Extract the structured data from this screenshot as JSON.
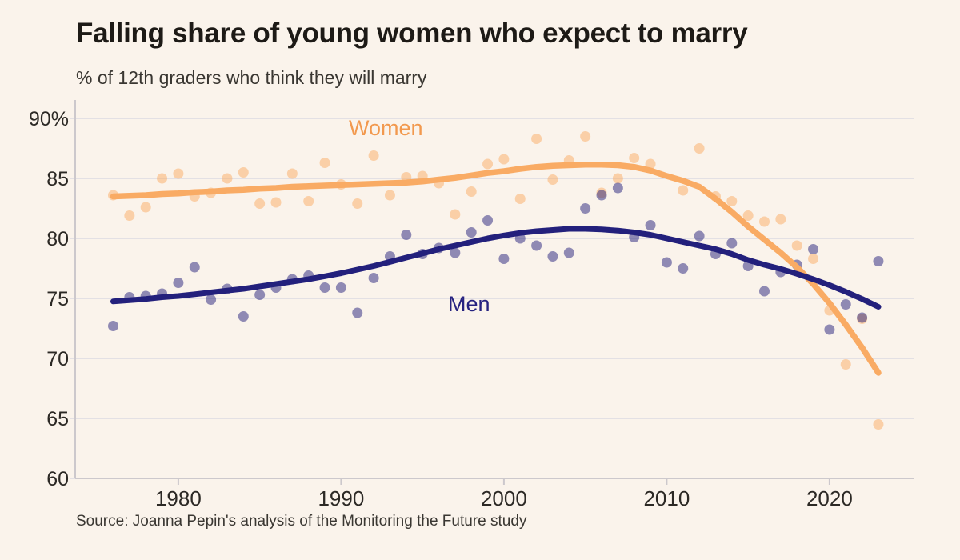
{
  "colors": {
    "background": "#faf3eb",
    "women_line": "#f9ab64",
    "men_line": "#23207c",
    "women_label": "#f2994e",
    "men_label": "#262280",
    "grid": "#e3e0e4",
    "axis": "#ccc8cc",
    "tick_text": "#2c2925",
    "title_text": "#1d1a16"
  },
  "chart_data": {
    "type": "scatter+line",
    "title": "Falling share of young women who expect to marry",
    "subtitle": "% of 12th graders who think they will marry",
    "source": "Source: Joanna Pepin's analysis of the Monitoring the Future study",
    "xlabel": "",
    "ylabel": "",
    "xlim": [
      1974.5,
      2025.5
    ],
    "ylim": [
      60,
      90
    ],
    "grid": true,
    "legend": "inline series labels on chart",
    "xticks": [
      1980,
      1990,
      2000,
      2010,
      2020
    ],
    "yticks": [
      60,
      65,
      70,
      75,
      80,
      85,
      90
    ],
    "ytick_labels": [
      "60",
      "65",
      "70",
      "75",
      "80",
      "85",
      "90%"
    ],
    "x": [
      1976,
      1977,
      1978,
      1979,
      1980,
      1981,
      1982,
      1983,
      1984,
      1985,
      1986,
      1987,
      1988,
      1989,
      1990,
      1991,
      1992,
      1993,
      1994,
      1995,
      1996,
      1997,
      1998,
      1999,
      2000,
      2001,
      2002,
      2003,
      2004,
      2005,
      2006,
      2007,
      2008,
      2009,
      2010,
      2011,
      2012,
      2013,
      2014,
      2015,
      2016,
      2017,
      2018,
      2019,
      2020,
      2021,
      2022,
      2023
    ],
    "series": [
      {
        "name": "Women",
        "points": [
          83.6,
          81.9,
          82.6,
          85.0,
          85.4,
          83.5,
          83.8,
          85.0,
          85.5,
          82.9,
          83.0,
          85.4,
          83.1,
          86.3,
          84.5,
          82.9,
          86.9,
          83.6,
          85.1,
          85.2,
          84.6,
          82.0,
          83.9,
          86.2,
          86.6,
          83.3,
          88.3,
          84.9,
          86.5,
          88.5,
          83.8,
          85.0,
          86.7,
          86.2,
          null,
          84.0,
          87.5,
          83.5,
          83.1,
          81.9,
          81.4,
          81.6,
          79.4,
          78.3,
          74.0,
          69.5,
          73.3,
          64.5
        ],
        "trend": [
          83.5,
          83.55,
          83.6,
          83.7,
          83.75,
          83.85,
          83.9,
          84.0,
          84.05,
          84.15,
          84.2,
          84.3,
          84.35,
          84.4,
          84.45,
          84.5,
          84.55,
          84.6,
          84.65,
          84.75,
          84.9,
          85.05,
          85.25,
          85.45,
          85.6,
          85.8,
          85.95,
          86.05,
          86.1,
          86.15,
          86.15,
          86.1,
          85.95,
          85.65,
          85.2,
          84.8,
          84.3,
          83.3,
          82.2,
          81.0,
          79.9,
          78.8,
          77.6,
          76.2,
          74.6,
          72.8,
          70.9,
          68.8
        ]
      },
      {
        "name": "Men",
        "points": [
          72.7,
          75.1,
          75.2,
          75.4,
          76.3,
          77.6,
          74.9,
          75.8,
          73.5,
          75.3,
          75.9,
          76.6,
          76.9,
          75.9,
          75.9,
          73.8,
          76.7,
          78.5,
          80.3,
          78.7,
          79.2,
          78.8,
          80.5,
          81.5,
          78.3,
          80.0,
          79.4,
          78.5,
          78.8,
          82.5,
          83.6,
          84.2,
          80.1,
          81.1,
          78.0,
          77.5,
          80.2,
          78.7,
          79.6,
          77.7,
          75.6,
          77.2,
          77.8,
          79.1,
          72.4,
          74.5,
          73.4,
          78.1
        ],
        "trend": [
          74.75,
          74.85,
          74.95,
          75.1,
          75.2,
          75.35,
          75.5,
          75.65,
          75.8,
          76.0,
          76.2,
          76.4,
          76.6,
          76.85,
          77.1,
          77.4,
          77.7,
          78.05,
          78.4,
          78.75,
          79.1,
          79.4,
          79.7,
          80.0,
          80.25,
          80.45,
          80.6,
          80.7,
          80.8,
          80.8,
          80.75,
          80.65,
          80.5,
          80.3,
          80.0,
          79.7,
          79.4,
          79.1,
          78.7,
          78.2,
          77.8,
          77.45,
          77.05,
          76.6,
          76.1,
          75.55,
          74.95,
          74.3
        ]
      }
    ]
  }
}
